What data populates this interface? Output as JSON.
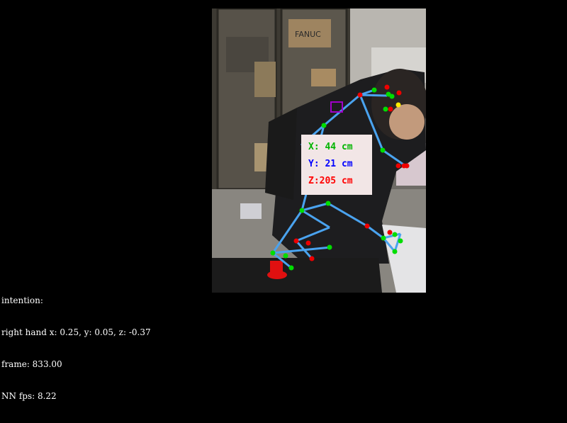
{
  "overlay": {
    "x_label": "X: 44 cm",
    "y_label": "Y: 21 cm",
    "z_label": "Z:205 cm",
    "x_color": "#00b400",
    "y_color": "#0000ff",
    "z_color": "#ff0000"
  },
  "scene": {
    "box_label": "FANUC"
  },
  "hud": {
    "intention": "intention:",
    "right_hand": "right hand x: 0.25, y: 0.05, z: -0.37",
    "frame": "frame: 833.00",
    "fps": "NN fps: 8.22"
  },
  "colors": {
    "skeleton": "#4aa3ef",
    "keypoint_green": "#00dd00",
    "keypoint_red": "#ee0000",
    "keypoint_yellow": "#ffee00",
    "target_marker": "#a000c8"
  }
}
